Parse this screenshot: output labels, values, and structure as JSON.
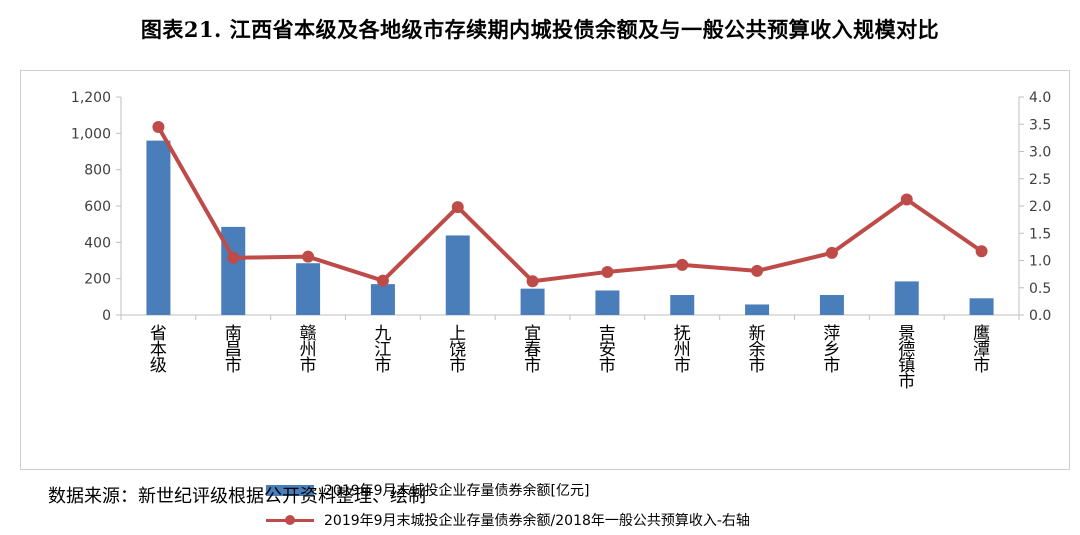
{
  "title": "图表21. 江西省本级及各地级市存续期内城投债余额及与一般公共预算收入规模对比",
  "source": "数据来源：新世纪评级根据公开资料整理、绘制",
  "colors": {
    "bar": "#4a7ebb",
    "line": "#be4b48",
    "axis": "#bfbfbf",
    "text": "#404040"
  },
  "chart_data": {
    "type": "bar",
    "categories": [
      "省本级",
      "南昌市",
      "赣州市",
      "九江市",
      "上饶市",
      "宜春市",
      "吉安市",
      "抚州市",
      "新余市",
      "萍乡市",
      "景德镇市",
      "鹰潭市"
    ],
    "series": [
      {
        "name": "2019年9月末城投企业存量债券余额[亿元]",
        "type": "bar",
        "axis": "left",
        "values": [
          960,
          485,
          285,
          170,
          438,
          145,
          135,
          110,
          58,
          110,
          185,
          92
        ]
      },
      {
        "name": "2019年9月末城投企业存量债券余额/2018年一般公共预算收入-右轴",
        "type": "line",
        "axis": "right",
        "values": [
          3.45,
          1.05,
          1.07,
          0.63,
          1.98,
          0.62,
          0.79,
          0.92,
          0.81,
          1.14,
          2.12,
          1.17
        ]
      }
    ],
    "y_left": {
      "min": 0,
      "max": 1200,
      "ticks": [
        0,
        200,
        400,
        600,
        800,
        1000,
        1200
      ],
      "tick_labels": [
        "0",
        "200",
        "400",
        "600",
        "800",
        "1,000",
        "1,200"
      ]
    },
    "y_right": {
      "min": 0,
      "max": 4.0,
      "ticks": [
        0,
        0.5,
        1.0,
        1.5,
        2.0,
        2.5,
        3.0,
        3.5,
        4.0
      ],
      "tick_labels": [
        "0.0",
        "0.5",
        "1.0",
        "1.5",
        "2.0",
        "2.5",
        "3.0",
        "3.5",
        "4.0"
      ]
    },
    "grid": false,
    "legend_position": "bottom"
  }
}
